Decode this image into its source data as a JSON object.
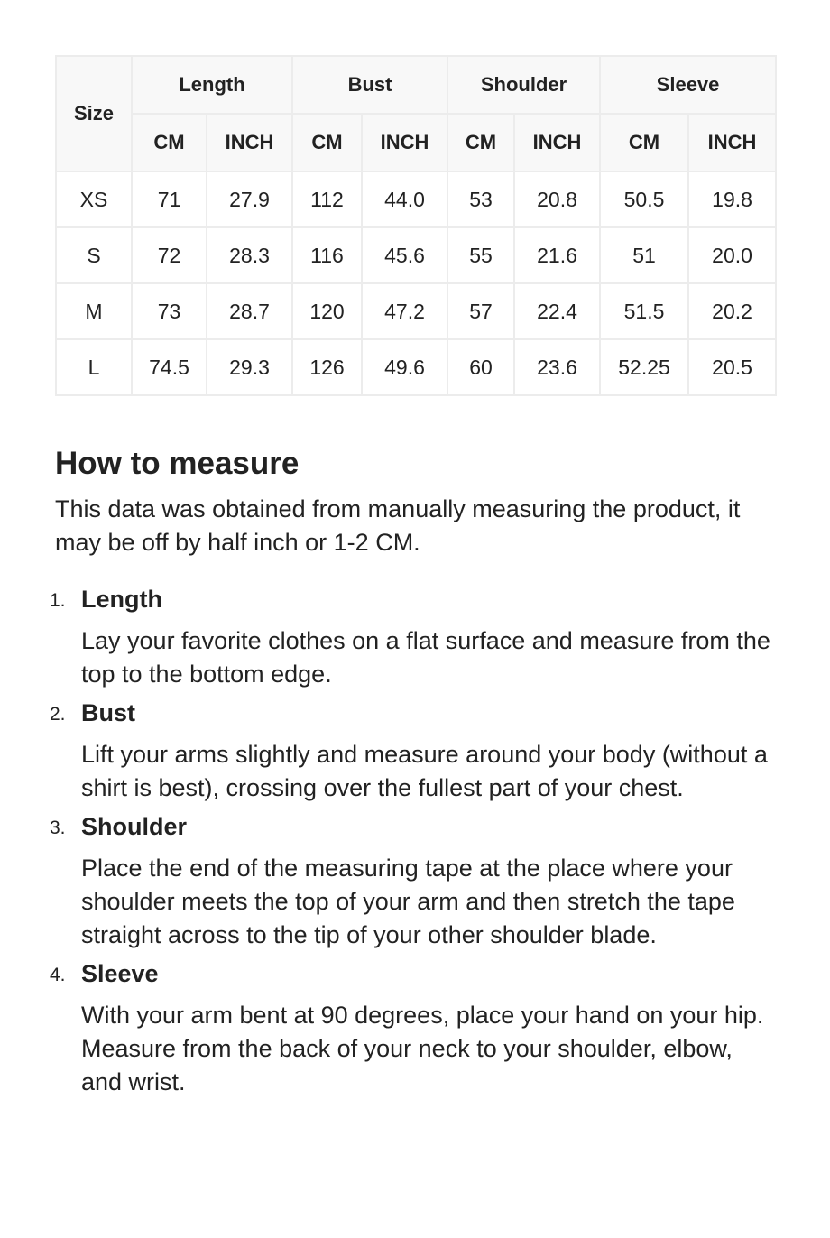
{
  "table": {
    "size_label": "Size",
    "groups": [
      "Length",
      "Bust",
      "Shoulder",
      "Sleeve"
    ],
    "units": [
      "CM",
      "INCH"
    ],
    "rows": [
      [
        "XS",
        "71",
        "27.9",
        "112",
        "44.0",
        "53",
        "20.8",
        "50.5",
        "19.8"
      ],
      [
        "S",
        "72",
        "28.3",
        "116",
        "45.6",
        "55",
        "21.6",
        "51",
        "20.0"
      ],
      [
        "M",
        "73",
        "28.7",
        "120",
        "47.2",
        "57",
        "22.4",
        "51.5",
        "20.2"
      ],
      [
        "L",
        "74.5",
        "29.3",
        "126",
        "49.6",
        "60",
        "23.6",
        "52.25",
        "20.5"
      ]
    ]
  },
  "howto": {
    "title": "How to measure",
    "intro": "This data was obtained from manually measuring the product, it may be off by half inch or 1-2 CM.",
    "items": [
      {
        "num": "1.",
        "title": "Length",
        "desc": "Lay your favorite clothes on a flat surface and measure from the top to the bottom edge."
      },
      {
        "num": "2.",
        "title": "Bust",
        "desc": "Lift your arms slightly and measure around your body (without a shirt is best), crossing over the fullest part of your chest."
      },
      {
        "num": "3.",
        "title": "Shoulder",
        "desc": "Place the end of the measuring tape at the place where your shoulder meets the top of your arm and then stretch the tape straight across to the tip of your other shoulder blade."
      },
      {
        "num": "4.",
        "title": "Sleeve",
        "desc": "With your arm bent at 90 degrees, place your hand on your hip. Measure from the back of your neck to your shoulder, elbow, and wrist."
      }
    ]
  }
}
